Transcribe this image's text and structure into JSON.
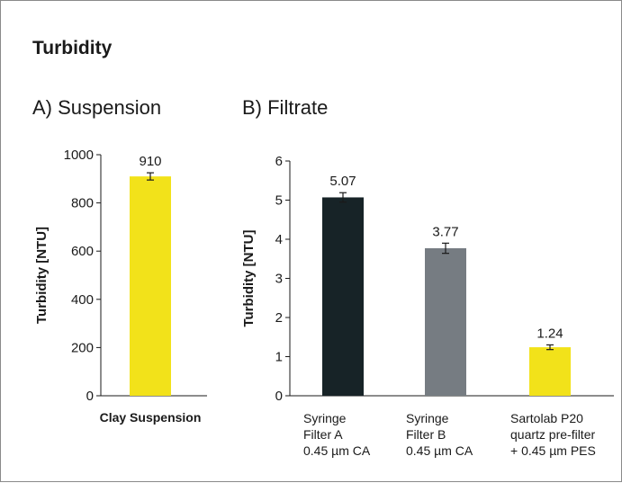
{
  "page": {
    "title": "Turbidity"
  },
  "chart_data": [
    {
      "type": "bar",
      "panel_label": "A) Suspension",
      "ylabel": "Turbidity [NTU]",
      "ylim": [
        0,
        1000
      ],
      "yticks": [
        0,
        200,
        400,
        600,
        800,
        1000
      ],
      "categories": [
        "Clay Suspension"
      ],
      "values": [
        910
      ],
      "error": [
        15
      ],
      "data_labels": [
        "910"
      ],
      "colors": [
        "#f2e21a"
      ],
      "category_style": "bold"
    },
    {
      "type": "bar",
      "panel_label": "B) Filtrate",
      "ylabel": "Turbidity [NTU]",
      "ylim": [
        0,
        6
      ],
      "yticks": [
        0,
        1,
        2,
        3,
        4,
        5,
        6
      ],
      "categories": [
        [
          "Syringe",
          "Filter A",
          "0.45 µm CA"
        ],
        [
          "Syringe",
          "Filter B",
          "0.45 µm CA"
        ],
        [
          "Sartolab P20",
          "quartz pre-filter",
          "+ 0.45 µm PES"
        ]
      ],
      "values": [
        5.07,
        3.77,
        1.24
      ],
      "error": [
        0.12,
        0.13,
        0.06
      ],
      "data_labels": [
        "5.07",
        "3.77",
        "1.24"
      ],
      "colors": [
        "#172327",
        "#767c82",
        "#f2e21a"
      ],
      "category_style": "normal"
    }
  ]
}
